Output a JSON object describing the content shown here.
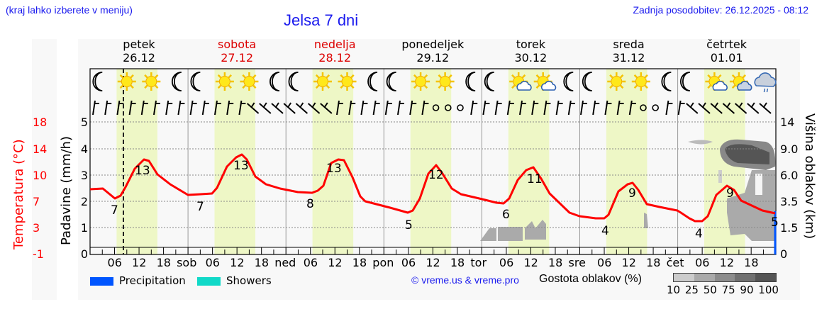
{
  "header": {
    "location_hint": "(kraj lahko izberete v meniju)",
    "title": "Jelsa 7 dni",
    "last_update": "Zadnja posodobitev: 26.12.2025 - 08:12"
  },
  "days": [
    {
      "name": "petek",
      "date": "26.12",
      "weekend": false
    },
    {
      "name": "sobota",
      "date": "27.12",
      "weekend": true
    },
    {
      "name": "nedelja",
      "date": "28.12",
      "weekend": true
    },
    {
      "name": "ponedeljek",
      "date": "29.12",
      "weekend": false
    },
    {
      "name": "torek",
      "date": "30.12",
      "weekend": false
    },
    {
      "name": "sreda",
      "date": "31.12",
      "weekend": false
    },
    {
      "name": "četrtek",
      "date": "01.01",
      "weekend": false
    }
  ],
  "weather_icons": [
    "moon",
    "sun",
    "sun",
    "moon",
    "moon",
    "sun",
    "sun",
    "moon",
    "moon",
    "sun",
    "sun",
    "moon",
    "moon",
    "sun",
    "sun",
    "moon",
    "moon",
    "sun-cloud",
    "sun-cloud",
    "moon",
    "moon",
    "sun",
    "sun",
    "moon",
    "moon",
    "sun-cloud",
    "sun-dark-cloud",
    "cloud-rain"
  ],
  "axes": {
    "temp_label": "Temperatura (°C)",
    "rain_label": "Padavine (mm/h)",
    "cloud_label": "Višina oblakov (km)",
    "temp_ticks": [
      "18",
      "14",
      "10",
      "7",
      "3",
      "-1"
    ],
    "rain_ticks": [
      "5",
      "4",
      "3",
      "2",
      "1",
      "0"
    ],
    "cloud_ticks": [
      "14",
      "9.0",
      "6.0",
      "3.5",
      "1.5",
      "0"
    ],
    "x_labels": [
      "06",
      "12",
      "18",
      "sob",
      "06",
      "12",
      "18",
      "ned",
      "06",
      "12",
      "18",
      "pon",
      "06",
      "12",
      "18",
      "tor",
      "06",
      "12",
      "18",
      "sre",
      "06",
      "12",
      "18",
      "čet",
      "06",
      "12",
      "18"
    ]
  },
  "legend": {
    "items": [
      {
        "label": "Precipitation",
        "color": "#0055ff"
      },
      {
        "label": "Showers",
        "color": "#11d9c8"
      }
    ],
    "copyright": "© vreme.us & vreme.pro",
    "density_label": "Gostota oblakov (%)",
    "density_ticks": "10 25 50 75 90 100",
    "density_colors": [
      "#cccccc",
      "#aaaaaa",
      "#8c8c8c",
      "#707070",
      "#555555"
    ]
  },
  "colors": {
    "temperature_line": "#ff0000",
    "daylight_band": "#eef7c6",
    "now_line": "#222222"
  },
  "chart_data": {
    "type": "line",
    "title": "Jelsa 7 dni",
    "xlabel": "",
    "ylabel": "Temperatura (°C)",
    "ylim": [
      -1,
      18
    ],
    "secondary_axes": {
      "precipitation_mm_h": [
        0,
        5
      ],
      "cloud_height_km": [
        0,
        14
      ]
    },
    "series": [
      {
        "name": "Temperatura",
        "x": [
          "26.12 00",
          "26.12 04",
          "26.12 06",
          "26.12 12",
          "26.12 18",
          "27.12 06",
          "27.12 12",
          "27.12 18",
          "28.12 06",
          "28.12 12",
          "28.12 18",
          "29.12 06",
          "29.12 12",
          "29.12 18",
          "30.12 06",
          "30.12 12",
          "30.12 18",
          "31.12 06",
          "31.12 12",
          "31.12 18",
          "01.01 06",
          "01.01 12",
          "01.01 18"
        ],
        "values": [
          8.2,
          7,
          7.6,
          13,
          10,
          7.5,
          13,
          9.5,
          7.5,
          13,
          7.5,
          5,
          12,
          8,
          6,
          11,
          6.5,
          4,
          9,
          6.5,
          4,
          9,
          5
        ]
      },
      {
        "name": "Precipitation",
        "values": [
          0
        ]
      }
    ],
    "annotations": {
      "min_labels": [
        7,
        7,
        8,
        5,
        6,
        4,
        4
      ],
      "max_labels": [
        13,
        13,
        13,
        12,
        11,
        9,
        9
      ],
      "last_label": 5,
      "now_marker": "26.12 08:12"
    },
    "legend": [
      "Precipitation",
      "Showers"
    ],
    "grid": true
  }
}
